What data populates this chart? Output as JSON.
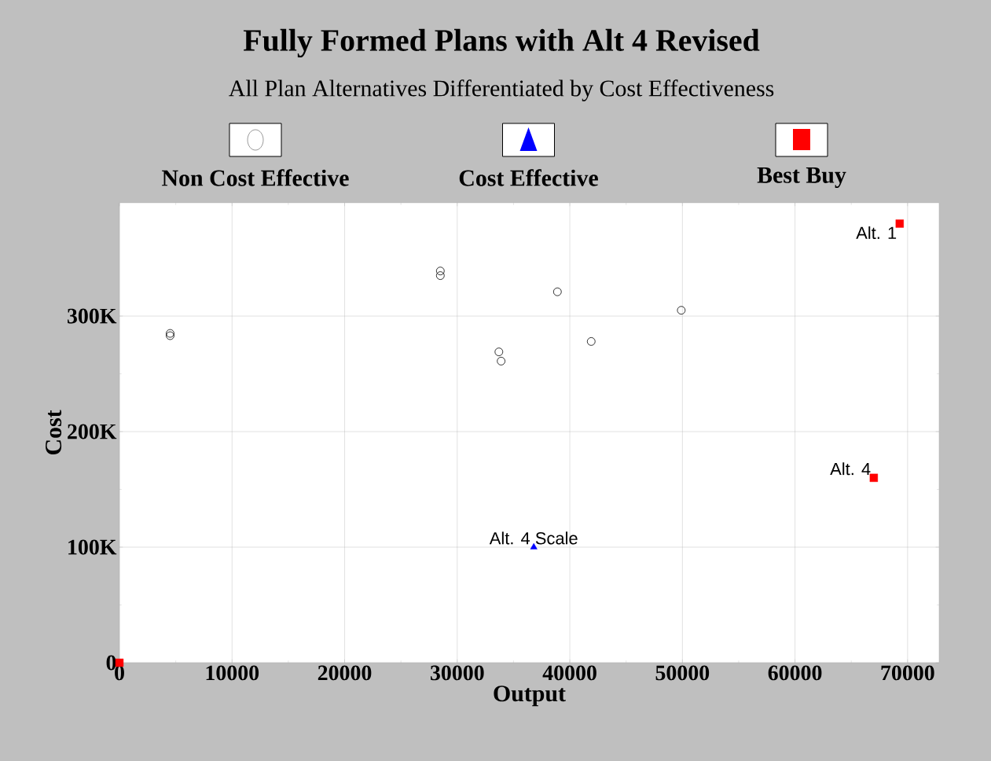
{
  "chart_data": {
    "type": "scatter",
    "title": "Fully Formed Plans with Alt 4 Revised",
    "subtitle": "All Plan Alternatives Differentiated by Cost Effectiveness",
    "xlabel": "Output",
    "ylabel": "Cost",
    "series": [
      {
        "name": "Non Cost Effective",
        "color": "#000000",
        "marker": "circle",
        "x": [
          4500,
          4500,
          28500,
          28500,
          38900,
          33700,
          33900,
          41900,
          49900
        ],
        "values": [
          285000,
          283000,
          339000,
          335000,
          321000,
          269000,
          261000,
          278000,
          305000
        ]
      },
      {
        "name": "Cost Effective",
        "color": "#0000ff",
        "marker": "triangle",
        "x": [
          36800
        ],
        "values": [
          100000
        ]
      },
      {
        "name": "Best Buy",
        "color": "#ff0000",
        "marker": "square",
        "x": [
          69300,
          67000,
          0
        ],
        "values": [
          380000,
          160000,
          0
        ]
      }
    ],
    "xlim": [
      0,
      72800
    ],
    "ylim": [
      0,
      398000
    ],
    "xticks": [
      0,
      10000,
      20000,
      30000,
      40000,
      50000,
      60000,
      70000
    ],
    "yticks": [
      0,
      {
        "value": 100000,
        "label": "100K"
      },
      {
        "value": 200000,
        "label": "200K"
      },
      {
        "value": 300000,
        "label": "300K"
      }
    ],
    "grid": true,
    "legend": "top",
    "annotations": [
      {
        "text": "Alt. 1",
        "x": 69300,
        "y": 380000
      },
      {
        "text": "Alt. 4",
        "x": 67000,
        "y": 160000
      },
      {
        "text": "Alt. 4 Scale",
        "x": 36800,
        "y": 100000
      }
    ]
  }
}
